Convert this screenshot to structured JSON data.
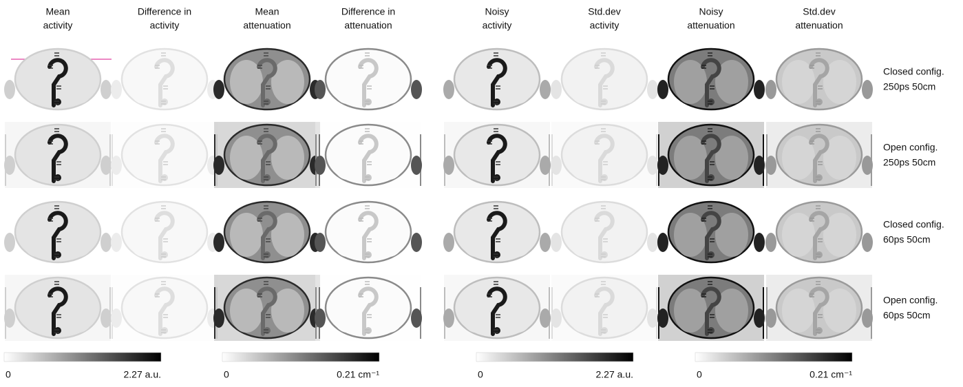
{
  "columns": [
    {
      "title": [
        "Mean",
        "activity"
      ]
    },
    {
      "title": [
        "Difference in",
        "activity"
      ]
    },
    {
      "title": [
        "Mean",
        "attenuation"
      ]
    },
    {
      "title": [
        "Difference in",
        "attenuation"
      ]
    },
    {
      "title": [
        "Noisy",
        "activity"
      ]
    },
    {
      "title": [
        "Std.dev",
        "activity"
      ]
    },
    {
      "title": [
        "Noisy",
        "attenuation"
      ]
    },
    {
      "title": [
        "Std.dev",
        "attenuation"
      ]
    }
  ],
  "rows": [
    {
      "label": [
        "Closed config.",
        "250ps 50cm"
      ]
    },
    {
      "label": [
        "Open config.",
        "250ps 50cm"
      ]
    },
    {
      "label": [
        "Closed config.",
        "60ps 50cm"
      ]
    },
    {
      "label": [
        "Open config.",
        "60ps 50cm"
      ]
    }
  ],
  "colorbars": [
    {
      "min": "0",
      "max": "2.27 a.u."
    },
    {
      "min": "0",
      "max": "0.21 cm⁻¹"
    },
    {
      "min": "0",
      "max": "2.27 a.u."
    },
    {
      "min": "0",
      "max": "0.21 cm⁻¹"
    }
  ]
}
